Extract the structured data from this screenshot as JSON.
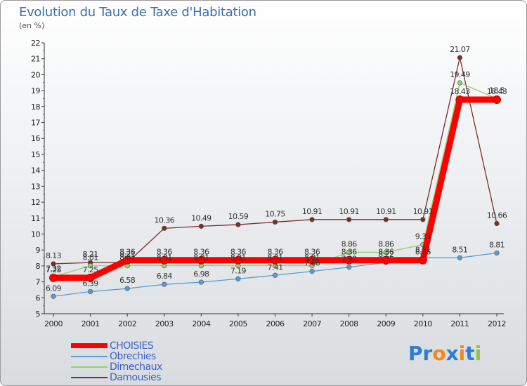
{
  "header": {
    "title": "Evolution du Taux de Taxe d'Habitation",
    "subtitle": "(en %)"
  },
  "brand": {
    "letters": [
      "P",
      "r",
      "o",
      "x",
      "i",
      "t",
      "i"
    ],
    "colors": [
      "#2e7dd2",
      "#2e7dd2",
      "#f08a1c",
      "#2e7dd2",
      "#f08a1c",
      "#2e7dd2",
      "#8cc63f"
    ]
  },
  "chart_data": {
    "type": "line",
    "title": "Evolution du Taux de Taxe d'Habitation",
    "ylabel": "(en %)",
    "xlabel": "",
    "x": [
      "2000",
      "2001",
      "2002",
      "2003",
      "2004",
      "2005",
      "2006",
      "2007",
      "2008",
      "2009",
      "2010",
      "2011",
      "2012"
    ],
    "ylim": [
      5,
      22
    ],
    "yticks": [
      5,
      6,
      7,
      8,
      9,
      10,
      11,
      12,
      13,
      14,
      15,
      16,
      17,
      18,
      19,
      20,
      21,
      22
    ],
    "grid": false,
    "legend": "bottom-left",
    "series": [
      {
        "name": "CHOISIES",
        "color": "#ff0000",
        "values": [
          7.25,
          7.25,
          8.36,
          8.36,
          8.36,
          8.36,
          8.36,
          8.36,
          8.36,
          8.36,
          8.36,
          18.43,
          18.43
        ],
        "labels": [
          "7.25",
          "7.25",
          "8.36",
          "8.36",
          "8.36",
          "8.36",
          "8.36",
          "8.36",
          "8.36",
          "8.36",
          "8.36",
          "18.43",
          "18.43"
        ]
      },
      {
        "name": "Obrechies",
        "color": "#5b9bd5",
        "values": [
          6.09,
          6.39,
          6.58,
          6.84,
          6.98,
          7.19,
          7.41,
          7.66,
          7.92,
          8.22,
          8.51,
          8.51,
          8.81
        ],
        "labels": [
          "6.09",
          "6.39",
          "6.58",
          "6.84",
          "6.98",
          "7.19",
          "7.41",
          "7.66",
          "7.92",
          "8.22",
          "8.51",
          "8.51",
          "8.81"
        ]
      },
      {
        "name": "Dimechaux",
        "color": "#8bd66a",
        "values": [
          7.32,
          8.01,
          8.01,
          8.01,
          8.01,
          8.01,
          8.01,
          8.01,
          8.86,
          8.86,
          9.33,
          19.49,
          18.5
        ],
        "labels": [
          "7.32",
          "8.01",
          "8.01",
          "8.01",
          "8.01",
          "8.01",
          "8.01",
          "8.01",
          "8.86",
          "8.86",
          "9.33",
          "19.49",
          "18.5"
        ]
      },
      {
        "name": "Damousies",
        "color": "#7b2c2c",
        "values": [
          8.13,
          8.21,
          8.21,
          10.36,
          10.49,
          10.59,
          10.75,
          10.91,
          10.91,
          10.91,
          10.91,
          21.07,
          10.66
        ],
        "labels": [
          "8.13",
          "8.21",
          "8.21",
          "10.36",
          "10.49",
          "10.59",
          "10.75",
          "10.91",
          "10.91",
          "10.91",
          "10.91",
          "21.07",
          "10.66"
        ]
      }
    ]
  }
}
